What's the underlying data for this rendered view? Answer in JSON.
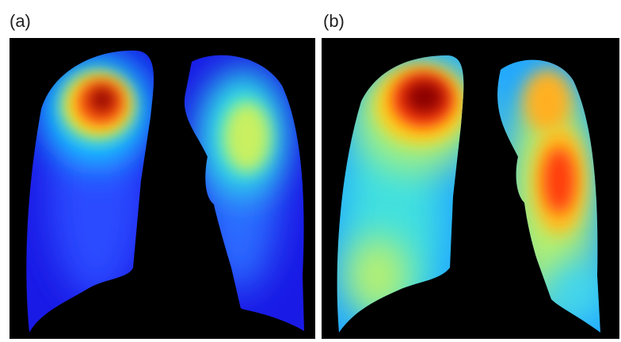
{
  "panels": [
    {
      "id": "a",
      "label": "(a)"
    },
    {
      "id": "b",
      "label": "(b)"
    }
  ],
  "colormap": [
    "#00007f",
    "#0000ff",
    "#00ffff",
    "#ffff00",
    "#ff0000",
    "#7f0000"
  ]
}
